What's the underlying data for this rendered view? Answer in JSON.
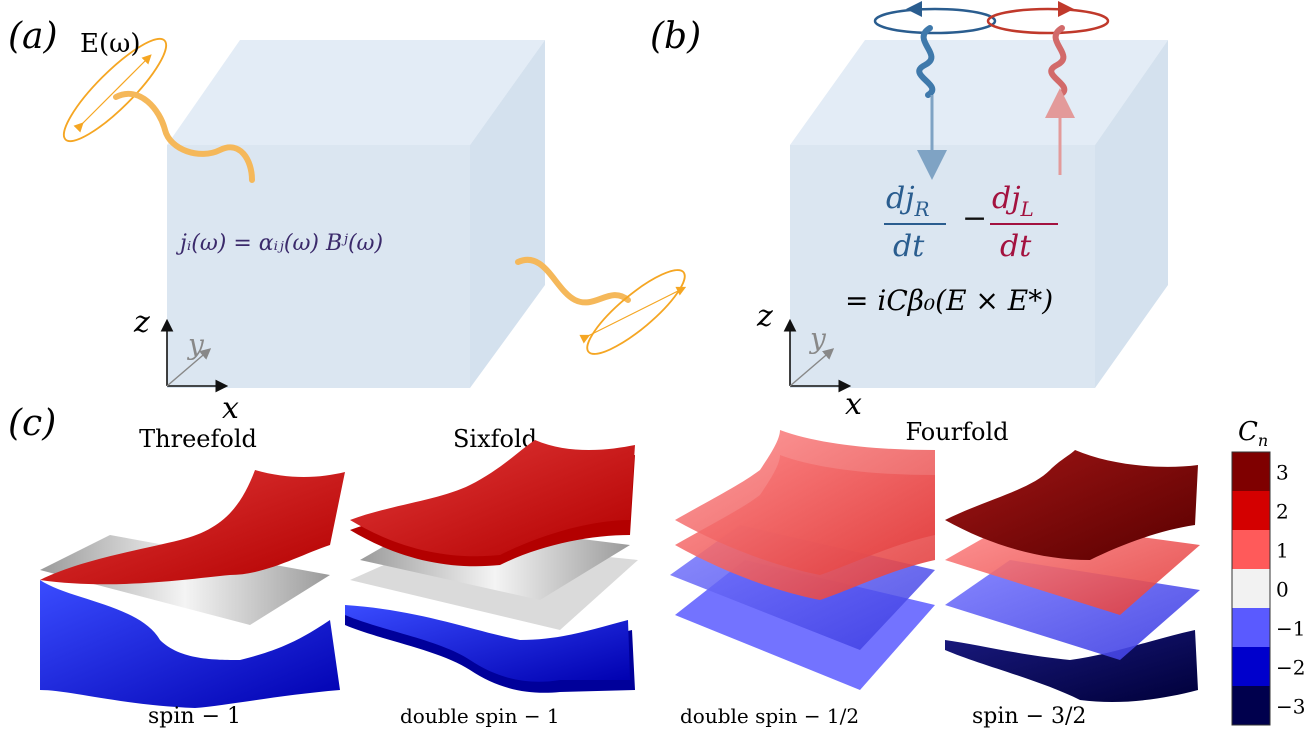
{
  "panel_a": {
    "label": "(a)",
    "field_label": "E(ω)",
    "equation": "jᵢ(ω) = αᵢⱼ(ω) Bʲ(ω)",
    "axes": {
      "x": "x",
      "y": "y",
      "z": "z"
    }
  },
  "panel_b": {
    "label": "(b)",
    "numerator_r": "dj",
    "sub_r": "R",
    "numerator_l": "dj",
    "sub_l": "L",
    "denominator": "dt",
    "minus": "−",
    "rhs": "= iCβ₀(E × E*)",
    "axes": {
      "x": "x",
      "y": "y",
      "z": "z"
    }
  },
  "panel_c": {
    "label": "(c)",
    "groups": [
      {
        "title": "Threefold",
        "caption": "spin − 1"
      },
      {
        "title": "Sixfold",
        "caption": "double spin − 1"
      },
      {
        "title": "Fourfold",
        "caption": "double  spin − 1/2"
      },
      {
        "title": "",
        "caption": "spin − 3/2"
      }
    ],
    "colorbar": {
      "title": "C",
      "title_sub": "n",
      "levels": [
        {
          "label": "3",
          "color": "#7f0000"
        },
        {
          "label": "2",
          "color": "#d40000"
        },
        {
          "label": "1",
          "color": "#ff5a5a"
        },
        {
          "label": "0",
          "color": "#f2f2f2"
        },
        {
          "label": "−1",
          "color": "#5a5aff"
        },
        {
          "label": "−2",
          "color": "#0000cc"
        },
        {
          "label": "−3",
          "color": "#00004d"
        }
      ]
    }
  },
  "colors": {
    "cube_face": "#dbe6f1",
    "orange": "#f5a623",
    "blue": "#2a5d8f",
    "red": "#c0392b",
    "crimson": "#a3123f"
  }
}
